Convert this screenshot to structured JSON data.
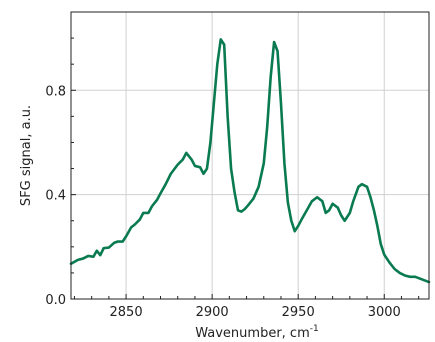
{
  "chart_data": {
    "type": "line",
    "title": "",
    "xlabel": "Wavenumber, cm",
    "xlabel_sup": "-1",
    "ylabel": "SFG signal, a.u.",
    "xlim": [
      2818,
      3026
    ],
    "ylim": [
      0,
      1.1
    ],
    "grid": true,
    "x_ticks": [
      2850,
      2900,
      2950,
      3000
    ],
    "x_tick_labels": [
      "2850",
      "2900",
      "2950",
      "3000"
    ],
    "y_ticks": [
      0,
      0.4,
      0.8
    ],
    "y_tick_labels": [
      "0.0",
      "0.4",
      "0.8"
    ],
    "series": [
      {
        "color": "#0a7a50",
        "x": [
          2818,
          2822,
          2825,
          2828,
          2831,
          2833,
          2835,
          2837,
          2840,
          2843,
          2845,
          2848,
          2850,
          2853,
          2855,
          2858,
          2860,
          2863,
          2865,
          2868,
          2870,
          2873,
          2876,
          2880,
          2883,
          2885,
          2888,
          2890,
          2893,
          2895,
          2897,
          2899,
          2901,
          2903,
          2905,
          2907,
          2909,
          2911,
          2913,
          2915,
          2917,
          2919,
          2921,
          2924,
          2927,
          2930,
          2932,
          2934,
          2936,
          2938,
          2940,
          2942,
          2944,
          2946,
          2948,
          2950,
          2952,
          2955,
          2958,
          2961,
          2964,
          2966,
          2968,
          2970,
          2973,
          2975,
          2977,
          2980,
          2982,
          2985,
          2987,
          2990,
          2992,
          2994,
          2996,
          2998,
          3000,
          3003,
          3006,
          3009,
          3012,
          3015,
          3018,
          3022,
          3026
        ],
        "y": [
          0.135,
          0.15,
          0.155,
          0.165,
          0.162,
          0.185,
          0.168,
          0.195,
          0.197,
          0.215,
          0.22,
          0.22,
          0.24,
          0.275,
          0.285,
          0.305,
          0.33,
          0.33,
          0.355,
          0.38,
          0.405,
          0.44,
          0.48,
          0.515,
          0.535,
          0.56,
          0.535,
          0.51,
          0.505,
          0.48,
          0.5,
          0.6,
          0.75,
          0.9,
          0.995,
          0.975,
          0.7,
          0.5,
          0.41,
          0.34,
          0.335,
          0.345,
          0.36,
          0.385,
          0.43,
          0.52,
          0.66,
          0.85,
          0.985,
          0.95,
          0.75,
          0.52,
          0.37,
          0.3,
          0.26,
          0.28,
          0.305,
          0.34,
          0.375,
          0.39,
          0.375,
          0.33,
          0.34,
          0.365,
          0.35,
          0.32,
          0.3,
          0.33,
          0.375,
          0.43,
          0.44,
          0.43,
          0.39,
          0.34,
          0.28,
          0.21,
          0.17,
          0.14,
          0.115,
          0.1,
          0.09,
          0.085,
          0.085,
          0.075,
          0.065
        ]
      }
    ]
  }
}
